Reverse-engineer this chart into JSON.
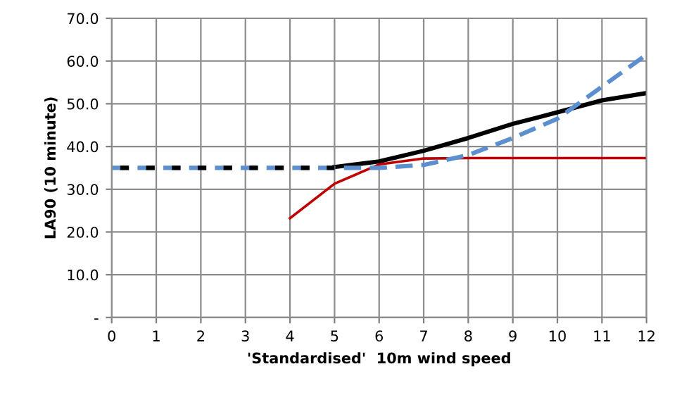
{
  "chart_data": {
    "type": "line",
    "xlabel": "'Standardised'  10m wind speed",
    "ylabel": "LA90 (10 minute)",
    "xlim": [
      0,
      12
    ],
    "xticks": [
      0,
      1,
      2,
      3,
      4,
      5,
      6,
      7,
      8,
      9,
      10,
      11,
      12
    ],
    "ylim": [
      0,
      70
    ],
    "yticks": [
      {
        "value": 0,
        "label": "-"
      },
      {
        "value": 10,
        "label": "10.0"
      },
      {
        "value": 20,
        "label": "20.0"
      },
      {
        "value": 30,
        "label": "30.0"
      },
      {
        "value": 40,
        "label": "40.0"
      },
      {
        "value": 50,
        "label": "50.0"
      },
      {
        "value": 60,
        "label": "60.0"
      },
      {
        "value": 70,
        "label": "70.0"
      }
    ],
    "grid": true,
    "legend": false,
    "marker": "none",
    "series": [
      {
        "color": "#000000",
        "line_style": "solid",
        "x": [
          5,
          6,
          7,
          8,
          9,
          10,
          11,
          12
        ],
        "values": [
          35.2,
          36.5,
          39,
          42,
          45.3,
          48,
          50.8,
          52.5
        ]
      },
      {
        "color": "#c00000",
        "line_style": "solid",
        "x": [
          4,
          5,
          6,
          7,
          8,
          9,
          10,
          11,
          12
        ],
        "values": [
          23.2,
          31.3,
          35.8,
          37.2,
          37.3,
          37.3,
          37.3,
          37.3,
          37.3
        ]
      },
      {
        "color": "#5b8fd0",
        "line_style": "dashed",
        "x": [
          0,
          1,
          2,
          3,
          4,
          5,
          6,
          7,
          8,
          9,
          10,
          11,
          12
        ],
        "values": [
          35,
          35,
          35,
          35,
          35,
          35,
          35,
          35.7,
          38,
          42,
          46.5,
          54,
          61.5
        ]
      },
      {
        "color": "#000000",
        "line_style": "dashed",
        "x": [
          0,
          1,
          2,
          3,
          4,
          5
        ],
        "values": [
          35,
          35,
          35,
          35,
          35,
          35
        ]
      }
    ]
  }
}
